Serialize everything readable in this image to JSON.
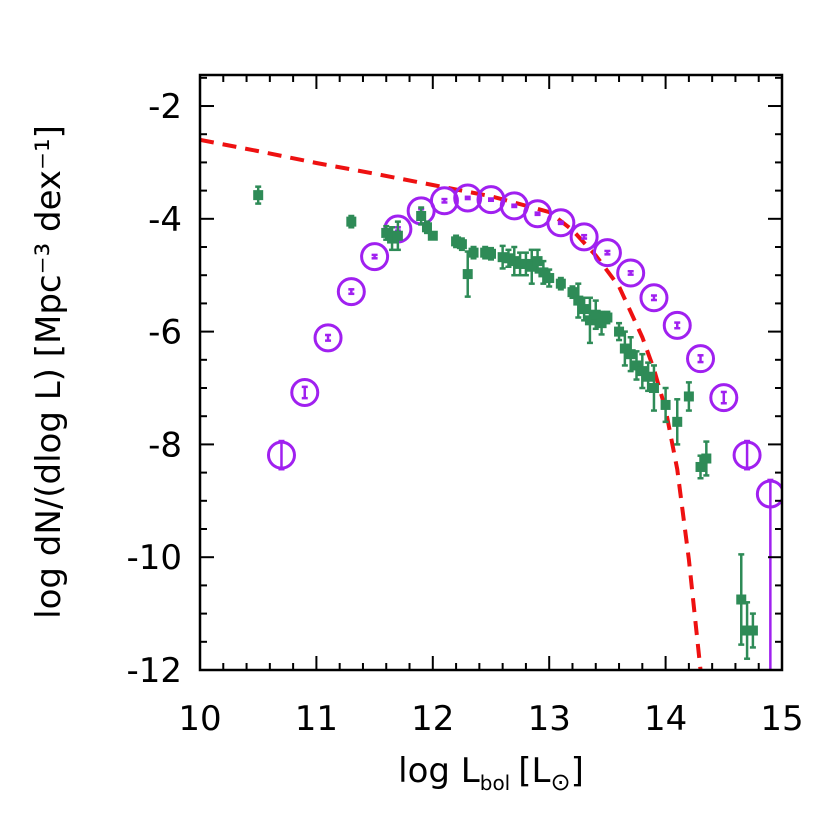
{
  "chart_data": {
    "type": "scatter",
    "xlabel": {
      "main": "log L",
      "sub": "bol",
      "unit_open": "[L",
      "unit_sub": "⊙",
      "unit_close": "]"
    },
    "ylabel": "log dN/(dlog L) [Mpc⁻³ dex⁻¹]",
    "xlim": [
      10,
      15
    ],
    "ylim": [
      -12,
      -1.45
    ],
    "xticks": [
      10,
      11,
      12,
      13,
      14,
      15
    ],
    "yticks": [
      -12,
      -10,
      -8,
      -6,
      -4,
      -2
    ],
    "xminorticks": [
      10.2,
      10.4,
      10.6,
      10.8,
      11.2,
      11.4,
      11.6,
      11.8,
      12.2,
      12.4,
      12.6,
      12.8,
      13.2,
      13.4,
      13.6,
      13.8,
      14.2,
      14.4,
      14.6,
      14.8
    ],
    "yminorticks": [
      -11.5,
      -11,
      -10.5,
      -9.5,
      -9,
      -8.5,
      -7.5,
      -7,
      -6.5,
      -5.5,
      -5,
      -4.5,
      -3.5,
      -3,
      -2.5,
      -1.5
    ],
    "model_curve": {
      "color": "#ee1111",
      "x": [
        10,
        10.5,
        11,
        11.5,
        12,
        12.5,
        13,
        13.2,
        13.4,
        13.6,
        13.8,
        13.9,
        14,
        14.1,
        14.2,
        14.3
      ],
      "values": [
        -2.6,
        -2.8,
        -3.01,
        -3.2,
        -3.4,
        -3.6,
        -3.88,
        -4.2,
        -4.65,
        -5.2,
        -6.1,
        -6.67,
        -7.38,
        -8.44,
        -10.04,
        -12
      ]
    },
    "series": [
      {
        "marker": "circle",
        "color": "#a020f0",
        "x": [
          10.7,
          10.9,
          11.1,
          11.3,
          11.5,
          11.7,
          11.9,
          12.1,
          12.3,
          12.5,
          12.7,
          12.9,
          13.1,
          13.3,
          13.5,
          13.7,
          13.9,
          14.1,
          14.3,
          14.5,
          14.7,
          14.9
        ],
        "values": [
          -8.19,
          -7.08,
          -6.11,
          -5.29,
          -4.67,
          -4.18,
          -3.86,
          -3.68,
          -3.63,
          -3.66,
          -3.77,
          -3.91,
          -4.07,
          -4.32,
          -4.6,
          -4.96,
          -5.4,
          -5.89,
          -6.48,
          -7.17,
          -8.19,
          -8.88
        ],
        "err_low": [
          0.25,
          0.1,
          0.05,
          0.04,
          0.03,
          0.03,
          0.03,
          0.03,
          0.02,
          0.02,
          0.02,
          0.02,
          0.02,
          0.03,
          0.03,
          0.03,
          0.04,
          0.05,
          0.06,
          0.1,
          0.25,
          4
        ],
        "err_high": [
          0.25,
          0.1,
          0.05,
          0.04,
          0.03,
          0.03,
          0.03,
          0.03,
          0.02,
          0.02,
          0.02,
          0.02,
          0.02,
          0.03,
          0.03,
          0.03,
          0.04,
          0.05,
          0.06,
          0.1,
          0.25,
          0.25
        ]
      },
      {
        "marker": "square",
        "color": "#2e8b57",
        "x": [
          10.5,
          11.3,
          11.6,
          11.65,
          11.7,
          11.9,
          11.95,
          12.0,
          12.2,
          12.25,
          12.3,
          12.35,
          12.45,
          12.5,
          12.6,
          12.65,
          12.7,
          12.75,
          12.8,
          12.85,
          12.9,
          12.95,
          13.0,
          13.1,
          13.2,
          13.25,
          13.3,
          13.35,
          13.4,
          13.45,
          13.5,
          13.6,
          13.65,
          13.7,
          13.75,
          13.8,
          13.85,
          13.9,
          14.0,
          14.1,
          14.2,
          14.3,
          14.35,
          14.65,
          14.7,
          14.75
        ],
        "values": [
          -3.58,
          -4.05,
          -4.25,
          -4.35,
          -4.3,
          -3.95,
          -4.15,
          -4.3,
          -4.4,
          -4.45,
          -4.98,
          -4.6,
          -4.6,
          -4.62,
          -4.68,
          -4.7,
          -4.75,
          -4.8,
          -4.8,
          -4.85,
          -4.75,
          -4.95,
          -5.05,
          -5.15,
          -5.3,
          -5.45,
          -5.6,
          -5.8,
          -5.7,
          -5.85,
          -5.75,
          -6.0,
          -6.3,
          -6.4,
          -6.6,
          -6.7,
          -6.8,
          -7.0,
          -7.3,
          -7.6,
          -7.15,
          -8.4,
          -8.25,
          -10.75,
          -11.3,
          -11.3
        ],
        "err_low": [
          0.15,
          0.1,
          0.12,
          0.2,
          0.25,
          0.15,
          0.1,
          0.05,
          0.1,
          0.1,
          0.4,
          0.1,
          0.1,
          0.1,
          0.2,
          0.15,
          0.25,
          0.2,
          0.2,
          0.3,
          0.2,
          0.2,
          0.15,
          0.1,
          0.1,
          0.3,
          0.2,
          0.4,
          0.25,
          0.2,
          0.1,
          0.15,
          0.3,
          0.3,
          0.25,
          0.3,
          0.25,
          0.4,
          0.3,
          0.4,
          0.25,
          0.2,
          0.3,
          0.8,
          0.5,
          0.3
        ],
        "err_high": [
          0.15,
          0.1,
          0.12,
          0.2,
          0.25,
          0.15,
          0.1,
          0.05,
          0.1,
          0.1,
          0.4,
          0.1,
          0.1,
          0.1,
          0.2,
          0.15,
          0.25,
          0.2,
          0.2,
          0.3,
          0.2,
          0.2,
          0.15,
          0.1,
          0.1,
          0.3,
          0.2,
          0.4,
          0.25,
          0.2,
          0.1,
          0.15,
          0.3,
          0.3,
          0.25,
          0.3,
          0.25,
          0.4,
          0.3,
          0.4,
          0.25,
          0.2,
          0.3,
          0.8,
          0.5,
          0.3
        ]
      }
    ]
  }
}
